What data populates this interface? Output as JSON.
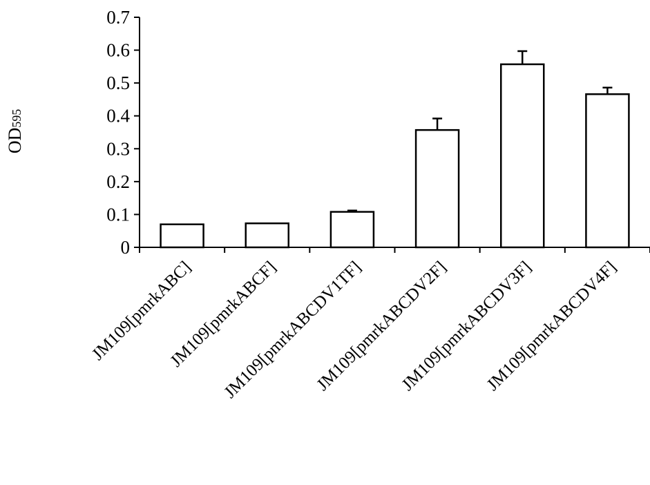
{
  "chart_data": {
    "type": "bar",
    "title": "",
    "xlabel": "",
    "ylabel": "OD595",
    "ylabel_parts": {
      "main": "OD",
      "sub": "595"
    },
    "categories": [
      "JM109[pmrkABC]",
      "JM109[pmrkABCF]",
      "JM109[pmrkABCDV1TF]",
      "JM109[pmrkABCDV2F]",
      "JM109[pmrkABCDV3F]",
      "JM109[pmrkABCDV4F]"
    ],
    "values": [
      0.07,
      0.073,
      0.108,
      0.357,
      0.557,
      0.466
    ],
    "errors": [
      0,
      0,
      0.004,
      0.035,
      0.04,
      0.02
    ],
    "ylim": [
      0,
      0.7
    ],
    "yticks": [
      "0",
      "0.1",
      "0.2",
      "0.3",
      "0.4",
      "0.5",
      "0.6",
      "0.7"
    ],
    "grid": false,
    "legend": "none",
    "bar_fill": "#ffffff",
    "bar_stroke": "#000000"
  }
}
